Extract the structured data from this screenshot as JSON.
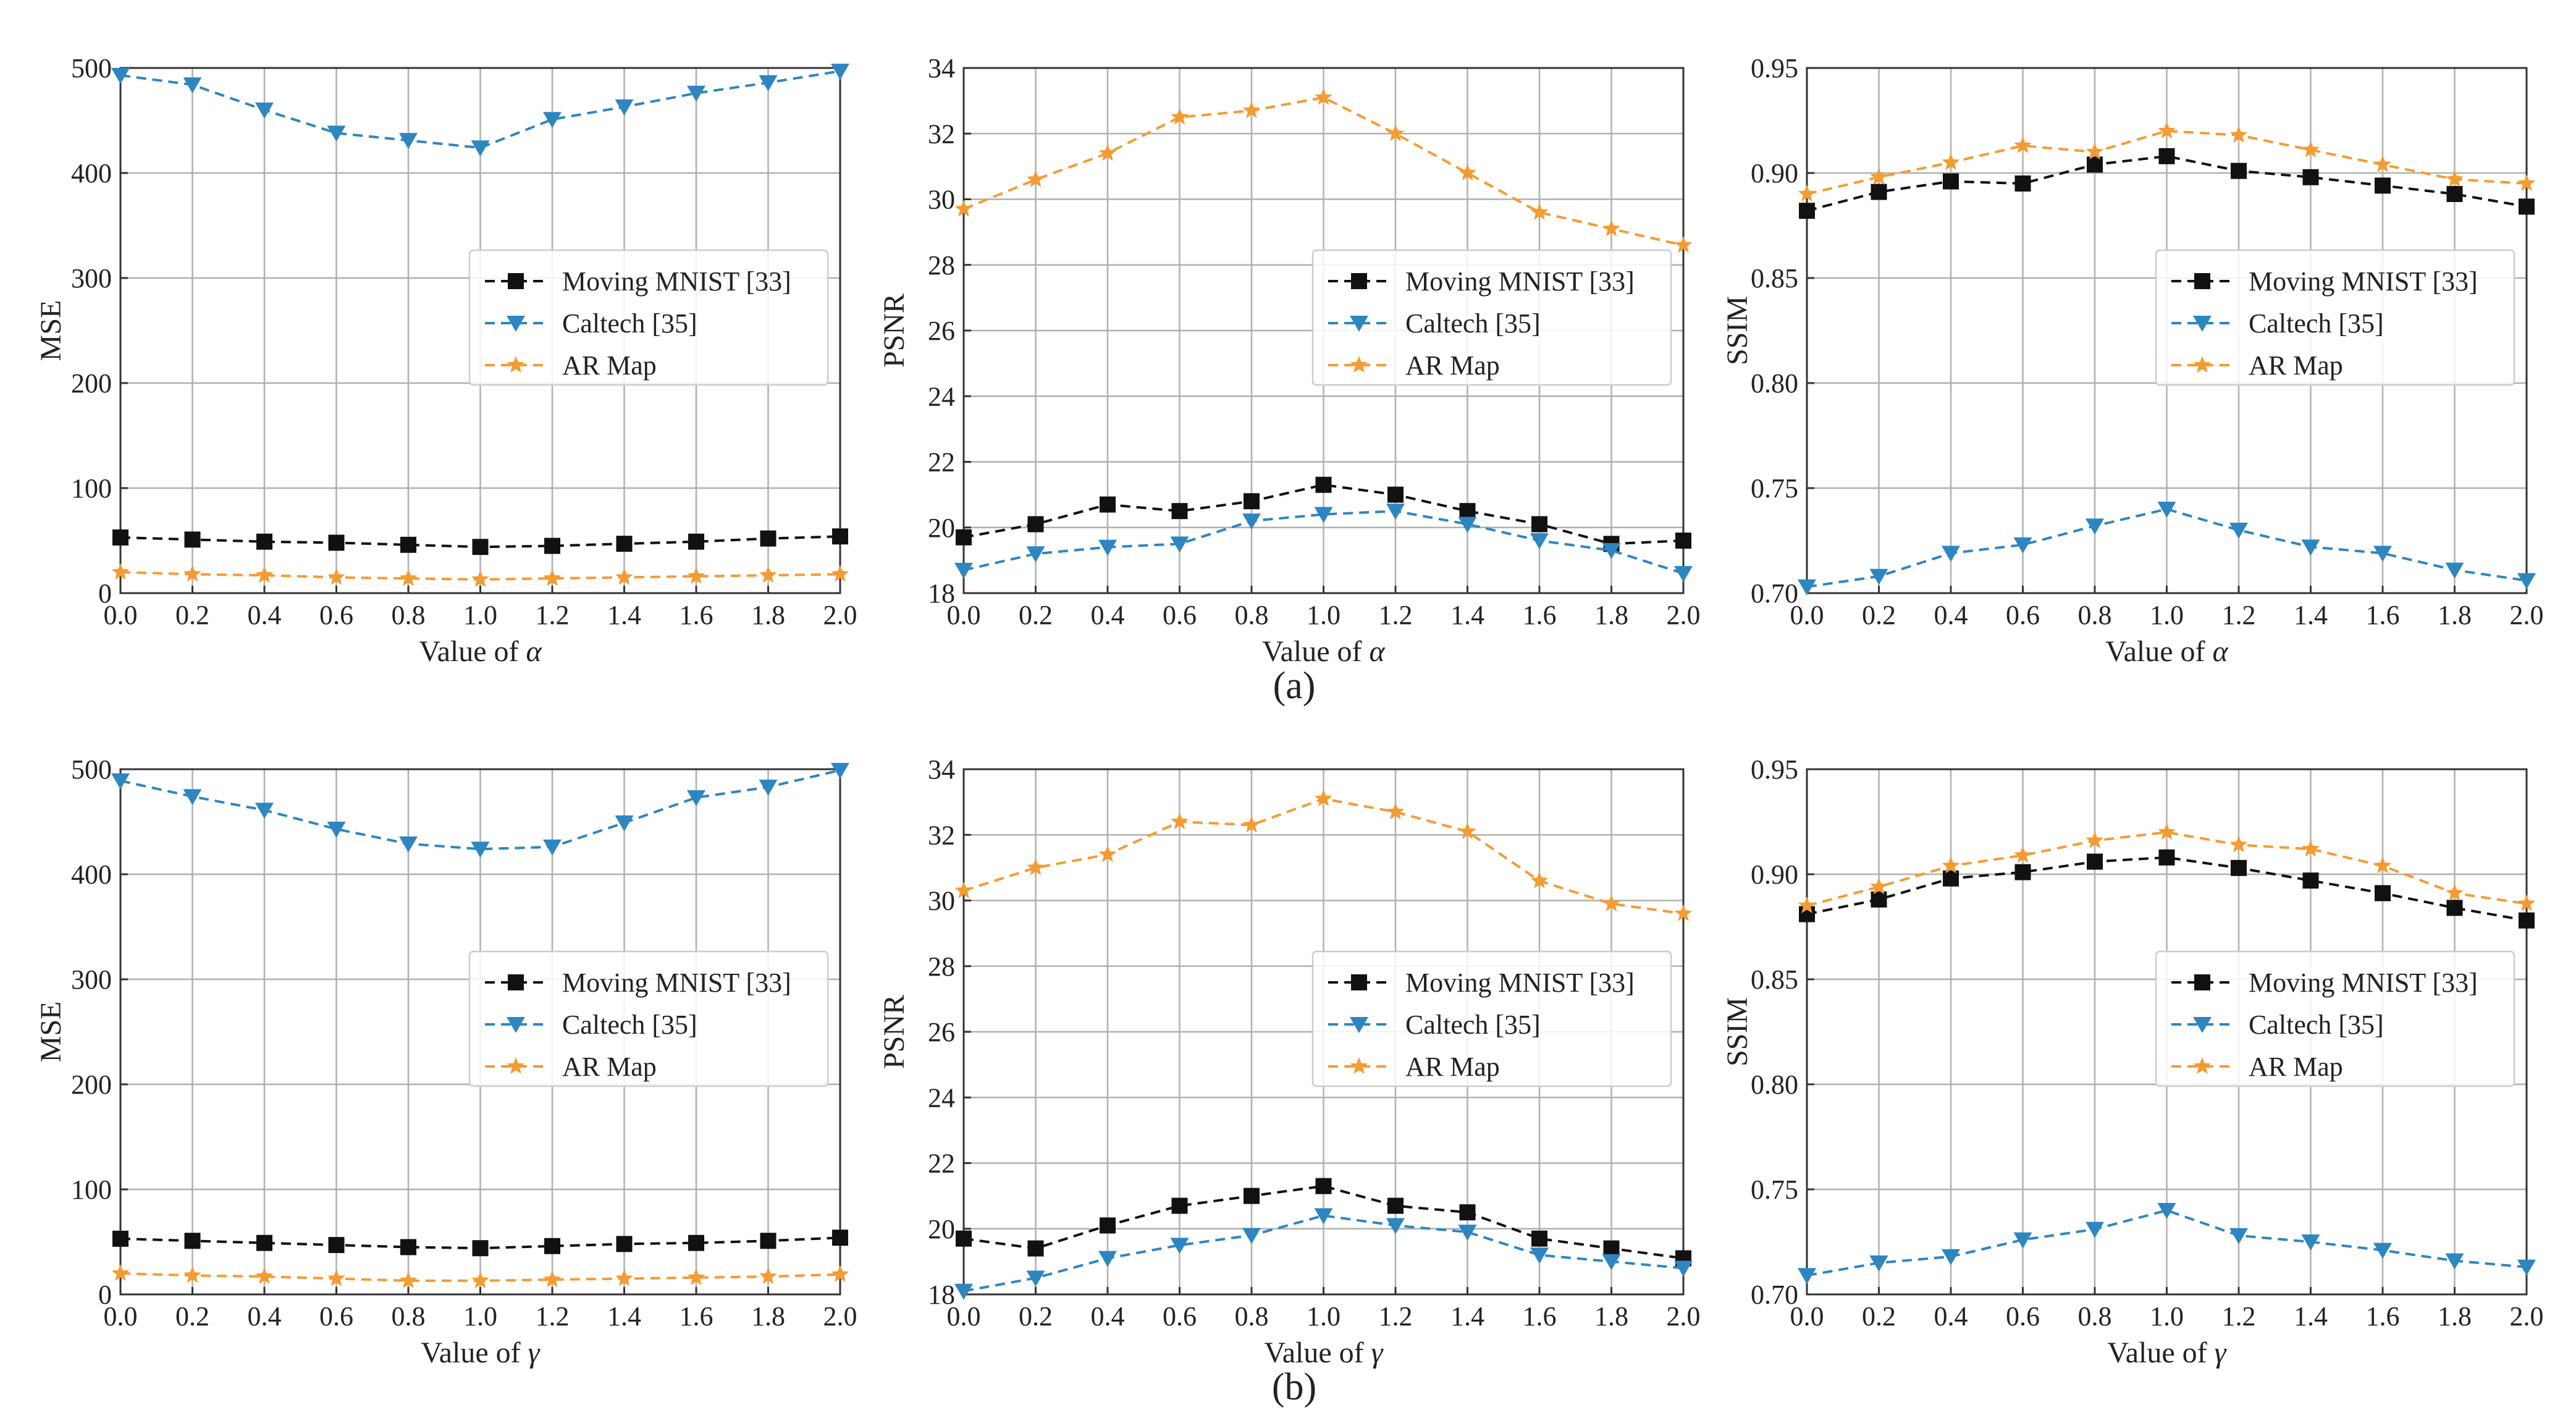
{
  "colors": {
    "moving_mnist": "#111111",
    "caltech": "#2e86c1",
    "ar_map": "#f39c33",
    "grid": "#b0b0b0",
    "axis": "#333333"
  },
  "icons": {
    "moving_mnist": "square-marker-icon",
    "caltech": "triangle-down-marker-icon",
    "ar_map": "star-marker-icon"
  },
  "captions": {
    "a": "(a)",
    "b": "(b)"
  },
  "chart_data": [
    {
      "id": "mse-alpha",
      "type": "line",
      "row": "a",
      "xlabel_prefix": "Value of ",
      "xlabel_symbol": "α",
      "ylabel": "MSE",
      "x": [
        0.0,
        0.2,
        0.4,
        0.6,
        0.8,
        1.0,
        1.2,
        1.4,
        1.6,
        1.8,
        2.0
      ],
      "xticks": [
        "0.0",
        "0.2",
        "0.4",
        "0.6",
        "0.8",
        "1.0",
        "1.2",
        "1.4",
        "1.6",
        "1.8",
        "2.0"
      ],
      "xlim": [
        0,
        2
      ],
      "ylim": [
        0,
        500
      ],
      "yticks": [
        "0",
        "100",
        "200",
        "300",
        "400",
        "500"
      ],
      "ytick_values": [
        0,
        100,
        200,
        300,
        400,
        500
      ],
      "legend_position": "center-right",
      "series": [
        {
          "name": "Moving MNIST [33]",
          "key": "moving_mnist",
          "marker": "square",
          "values": [
            53,
            51,
            49,
            48,
            46,
            44,
            45,
            47,
            49,
            52,
            54
          ]
        },
        {
          "name": "Caltech [35]",
          "key": "caltech",
          "marker": "triangle-down",
          "values": [
            493,
            484,
            460,
            438,
            431,
            424,
            451,
            463,
            476,
            486,
            497
          ]
        },
        {
          "name": "AR Map",
          "key": "ar_map",
          "marker": "star",
          "values": [
            20,
            18,
            17,
            15,
            14,
            13,
            14,
            15,
            16,
            17,
            18
          ]
        }
      ]
    },
    {
      "id": "psnr-alpha",
      "type": "line",
      "row": "a",
      "xlabel_prefix": "Value of ",
      "xlabel_symbol": "α",
      "ylabel": "PSNR",
      "x": [
        0.0,
        0.2,
        0.4,
        0.6,
        0.8,
        1.0,
        1.2,
        1.4,
        1.6,
        1.8,
        2.0
      ],
      "xticks": [
        "0.0",
        "0.2",
        "0.4",
        "0.6",
        "0.8",
        "1.0",
        "1.2",
        "1.4",
        "1.6",
        "1.8",
        "2.0"
      ],
      "xlim": [
        0,
        2
      ],
      "ylim": [
        18,
        34
      ],
      "yticks": [
        "18",
        "20",
        "22",
        "24",
        "26",
        "28",
        "30",
        "32",
        "34"
      ],
      "ytick_values": [
        18,
        20,
        22,
        24,
        26,
        28,
        30,
        32,
        34
      ],
      "legend_position": "center-right",
      "series": [
        {
          "name": "Moving MNIST [33]",
          "key": "moving_mnist",
          "marker": "square",
          "values": [
            19.7,
            20.1,
            20.7,
            20.5,
            20.8,
            21.3,
            21.0,
            20.5,
            20.1,
            19.5,
            19.6
          ]
        },
        {
          "name": "Caltech [35]",
          "key": "caltech",
          "marker": "triangle-down",
          "values": [
            18.7,
            19.2,
            19.4,
            19.5,
            20.2,
            20.4,
            20.5,
            20.1,
            19.6,
            19.3,
            18.6
          ]
        },
        {
          "name": "AR Map",
          "key": "ar_map",
          "marker": "star",
          "values": [
            29.7,
            30.6,
            31.4,
            32.5,
            32.7,
            33.1,
            32.0,
            30.8,
            29.6,
            29.1,
            28.6
          ]
        }
      ]
    },
    {
      "id": "ssim-alpha",
      "type": "line",
      "row": "a",
      "xlabel_prefix": "Value of ",
      "xlabel_symbol": "α",
      "ylabel": "SSIM",
      "x": [
        0.0,
        0.2,
        0.4,
        0.6,
        0.8,
        1.0,
        1.2,
        1.4,
        1.6,
        1.8,
        2.0
      ],
      "xticks": [
        "0.0",
        "0.2",
        "0.4",
        "0.6",
        "0.8",
        "1.0",
        "1.2",
        "1.4",
        "1.6",
        "1.8",
        "2.0"
      ],
      "xlim": [
        0,
        2
      ],
      "ylim": [
        0.7,
        0.95
      ],
      "yticks": [
        "0.70",
        "0.75",
        "0.80",
        "0.85",
        "0.90",
        "0.95"
      ],
      "ytick_values": [
        0.7,
        0.75,
        0.8,
        0.85,
        0.9,
        0.95
      ],
      "legend_position": "center-right",
      "series": [
        {
          "name": "Moving MNIST [33]",
          "key": "moving_mnist",
          "marker": "square",
          "values": [
            0.882,
            0.891,
            0.896,
            0.895,
            0.904,
            0.908,
            0.901,
            0.898,
            0.894,
            0.89,
            0.884
          ]
        },
        {
          "name": "Caltech [35]",
          "key": "caltech",
          "marker": "triangle-down",
          "values": [
            0.703,
            0.708,
            0.719,
            0.723,
            0.732,
            0.74,
            0.73,
            0.722,
            0.719,
            0.711,
            0.706
          ]
        },
        {
          "name": "AR Map",
          "key": "ar_map",
          "marker": "star",
          "values": [
            0.89,
            0.898,
            0.905,
            0.913,
            0.91,
            0.92,
            0.918,
            0.911,
            0.904,
            0.897,
            0.895
          ]
        }
      ]
    },
    {
      "id": "mse-gamma",
      "type": "line",
      "row": "b",
      "xlabel_prefix": "Value of ",
      "xlabel_symbol": "γ",
      "ylabel": "MSE",
      "x": [
        0.0,
        0.2,
        0.4,
        0.6,
        0.8,
        1.0,
        1.2,
        1.4,
        1.6,
        1.8,
        2.0
      ],
      "xticks": [
        "0.0",
        "0.2",
        "0.4",
        "0.6",
        "0.8",
        "1.0",
        "1.2",
        "1.4",
        "1.6",
        "1.8",
        "2.0"
      ],
      "xlim": [
        0,
        2
      ],
      "ylim": [
        0,
        500
      ],
      "yticks": [
        "0",
        "100",
        "200",
        "300",
        "400",
        "500"
      ],
      "ytick_values": [
        0,
        100,
        200,
        300,
        400,
        500
      ],
      "legend_position": "center-right",
      "series": [
        {
          "name": "Moving MNIST [33]",
          "key": "moving_mnist",
          "marker": "square",
          "values": [
            53,
            51,
            49,
            47,
            45,
            44,
            46,
            48,
            49,
            51,
            54
          ]
        },
        {
          "name": "Caltech [35]",
          "key": "caltech",
          "marker": "triangle-down",
          "values": [
            489,
            474,
            461,
            443,
            429,
            424,
            426,
            449,
            473,
            483,
            499
          ]
        },
        {
          "name": "AR Map",
          "key": "ar_map",
          "marker": "star",
          "values": [
            20,
            18,
            17,
            15,
            13,
            13,
            14,
            15,
            16,
            17,
            19
          ]
        }
      ]
    },
    {
      "id": "psnr-gamma",
      "type": "line",
      "row": "b",
      "xlabel_prefix": "Value of ",
      "xlabel_symbol": "γ",
      "ylabel": "PSNR",
      "x": [
        0.0,
        0.2,
        0.4,
        0.6,
        0.8,
        1.0,
        1.2,
        1.4,
        1.6,
        1.8,
        2.0
      ],
      "xticks": [
        "0.0",
        "0.2",
        "0.4",
        "0.6",
        "0.8",
        "1.0",
        "1.2",
        "1.4",
        "1.6",
        "1.8",
        "2.0"
      ],
      "xlim": [
        0,
        2
      ],
      "ylim": [
        18,
        34
      ],
      "yticks": [
        "18",
        "20",
        "22",
        "24",
        "26",
        "28",
        "30",
        "32",
        "34"
      ],
      "ytick_values": [
        18,
        20,
        22,
        24,
        26,
        28,
        30,
        32,
        34
      ],
      "legend_position": "center-right",
      "series": [
        {
          "name": "Moving MNIST [33]",
          "key": "moving_mnist",
          "marker": "square",
          "values": [
            19.7,
            19.4,
            20.1,
            20.7,
            21.0,
            21.3,
            20.7,
            20.5,
            19.7,
            19.4,
            19.1
          ]
        },
        {
          "name": "Caltech [35]",
          "key": "caltech",
          "marker": "triangle-down",
          "values": [
            18.1,
            18.5,
            19.1,
            19.5,
            19.8,
            20.4,
            20.1,
            19.9,
            19.2,
            19.0,
            18.8
          ]
        },
        {
          "name": "AR Map",
          "key": "ar_map",
          "marker": "star",
          "values": [
            30.3,
            31.0,
            31.4,
            32.4,
            32.3,
            33.1,
            32.7,
            32.1,
            30.6,
            29.9,
            29.6
          ]
        }
      ]
    },
    {
      "id": "ssim-gamma",
      "type": "line",
      "row": "b",
      "xlabel_prefix": "Value of ",
      "xlabel_symbol": "γ",
      "ylabel": "SSIM",
      "x": [
        0.0,
        0.2,
        0.4,
        0.6,
        0.8,
        1.0,
        1.2,
        1.4,
        1.6,
        1.8,
        2.0
      ],
      "xticks": [
        "0.0",
        "0.2",
        "0.4",
        "0.6",
        "0.8",
        "1.0",
        "1.2",
        "1.4",
        "1.6",
        "1.8",
        "2.0"
      ],
      "xlim": [
        0,
        2
      ],
      "ylim": [
        0.7,
        0.95
      ],
      "yticks": [
        "0.70",
        "0.75",
        "0.80",
        "0.85",
        "0.90",
        "0.95"
      ],
      "ytick_values": [
        0.7,
        0.75,
        0.8,
        0.85,
        0.9,
        0.95
      ],
      "legend_position": "center-right",
      "series": [
        {
          "name": "Moving MNIST [33]",
          "key": "moving_mnist",
          "marker": "square",
          "values": [
            0.881,
            0.888,
            0.898,
            0.901,
            0.906,
            0.908,
            0.903,
            0.897,
            0.891,
            0.884,
            0.878
          ]
        },
        {
          "name": "Caltech [35]",
          "key": "caltech",
          "marker": "triangle-down",
          "values": [
            0.709,
            0.715,
            0.718,
            0.726,
            0.731,
            0.74,
            0.728,
            0.725,
            0.721,
            0.716,
            0.713
          ]
        },
        {
          "name": "AR Map",
          "key": "ar_map",
          "marker": "star",
          "values": [
            0.885,
            0.894,
            0.904,
            0.909,
            0.916,
            0.92,
            0.914,
            0.912,
            0.904,
            0.891,
            0.886
          ]
        }
      ]
    }
  ]
}
